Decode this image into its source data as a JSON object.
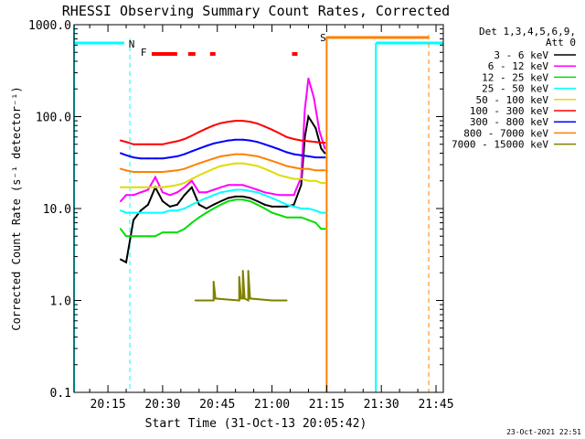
{
  "chart_data": {
    "type": "line",
    "title": "RHESSI Observing Summary Count Rates, Corrected",
    "xlabel": "Start Time (31-Oct-13 20:05:42)",
    "ylabel": "Corrected Count Rate (s⁻¹ detector⁻¹)",
    "x_tick_labels": [
      "20:15",
      "20:30",
      "20:45",
      "21:00",
      "21:15",
      "21:30",
      "21:45"
    ],
    "x_tick_minutes": [
      15,
      30,
      45,
      60,
      75,
      90,
      105
    ],
    "xlim_minutes": [
      5.7,
      107
    ],
    "y_tick_labels": [
      "0.1",
      "1.0",
      "10.0",
      "100.0",
      "1000.0"
    ],
    "y_tick_values": [
      0.1,
      1,
      10,
      100,
      1000
    ],
    "ylim": [
      0.1,
      1000
    ],
    "yscale": "log",
    "legend_header": [
      "Det 1,3,4,5,6,9,",
      "Att 0"
    ],
    "legend_position": "right",
    "series": [
      {
        "name": "3 - 6 keV",
        "color": "#000000",
        "points": [
          [
            18.5,
            2.8
          ],
          [
            20,
            2.6
          ],
          [
            22,
            7.5
          ],
          [
            24,
            9.5
          ],
          [
            26,
            11
          ],
          [
            28,
            17
          ],
          [
            30,
            12
          ],
          [
            32,
            10.5
          ],
          [
            34,
            11
          ],
          [
            36,
            14
          ],
          [
            38,
            17
          ],
          [
            40,
            11
          ],
          [
            42,
            10
          ],
          [
            44,
            11
          ],
          [
            46,
            12
          ],
          [
            48,
            13
          ],
          [
            50,
            13.5
          ],
          [
            52,
            13.5
          ],
          [
            54,
            13
          ],
          [
            56,
            12
          ],
          [
            58,
            11
          ],
          [
            60,
            10.5
          ],
          [
            62,
            10.5
          ],
          [
            64,
            10.5
          ],
          [
            66,
            11
          ],
          [
            68,
            18
          ],
          [
            69,
            60
          ],
          [
            70,
            100
          ],
          [
            72,
            75
          ],
          [
            73.5,
            45
          ],
          [
            74.5,
            40
          ]
        ]
      },
      {
        "name": "6 - 12 keV",
        "color": "#ff00ff",
        "points": [
          [
            18.5,
            12
          ],
          [
            20,
            14
          ],
          [
            22,
            14
          ],
          [
            24,
            15
          ],
          [
            26,
            16
          ],
          [
            28,
            22
          ],
          [
            30,
            15
          ],
          [
            32,
            14
          ],
          [
            34,
            15
          ],
          [
            36,
            17
          ],
          [
            38,
            20
          ],
          [
            40,
            15
          ],
          [
            42,
            15
          ],
          [
            44,
            16
          ],
          [
            46,
            17
          ],
          [
            48,
            18
          ],
          [
            50,
            18
          ],
          [
            52,
            18
          ],
          [
            54,
            17
          ],
          [
            56,
            16
          ],
          [
            58,
            15
          ],
          [
            60,
            14.5
          ],
          [
            62,
            14
          ],
          [
            64,
            14
          ],
          [
            66,
            14
          ],
          [
            68,
            22
          ],
          [
            69,
            120
          ],
          [
            70,
            260
          ],
          [
            71.5,
            160
          ],
          [
            73,
            70
          ],
          [
            74.5,
            45
          ]
        ]
      },
      {
        "name": "12 - 25 keV",
        "color": "#00dd00",
        "points": [
          [
            18.5,
            6
          ],
          [
            20,
            5
          ],
          [
            22,
            5
          ],
          [
            24,
            5
          ],
          [
            26,
            5
          ],
          [
            28,
            5
          ],
          [
            30,
            5.5
          ],
          [
            32,
            5.5
          ],
          [
            34,
            5.5
          ],
          [
            36,
            6
          ],
          [
            38,
            7
          ],
          [
            40,
            8
          ],
          [
            42,
            9
          ],
          [
            44,
            10
          ],
          [
            46,
            11
          ],
          [
            48,
            12
          ],
          [
            50,
            12.5
          ],
          [
            52,
            12.5
          ],
          [
            54,
            12
          ],
          [
            56,
            11
          ],
          [
            58,
            10
          ],
          [
            60,
            9
          ],
          [
            62,
            8.5
          ],
          [
            64,
            8
          ],
          [
            66,
            8
          ],
          [
            68,
            8
          ],
          [
            70,
            7.5
          ],
          [
            72,
            7
          ],
          [
            73.5,
            6
          ],
          [
            74.5,
            6
          ]
        ]
      },
      {
        "name": "25 - 50 keV",
        "color": "#00ffff",
        "points": [
          [
            18.5,
            9.5
          ],
          [
            20,
            9
          ],
          [
            22,
            9
          ],
          [
            24,
            9
          ],
          [
            26,
            9
          ],
          [
            28,
            9
          ],
          [
            30,
            9
          ],
          [
            32,
            9.5
          ],
          [
            34,
            9.5
          ],
          [
            36,
            10
          ],
          [
            38,
            11
          ],
          [
            40,
            12
          ],
          [
            42,
            13
          ],
          [
            44,
            14
          ],
          [
            46,
            15
          ],
          [
            48,
            15.5
          ],
          [
            50,
            16
          ],
          [
            52,
            16
          ],
          [
            54,
            15.5
          ],
          [
            56,
            15
          ],
          [
            58,
            14
          ],
          [
            60,
            13
          ],
          [
            62,
            12
          ],
          [
            64,
            11
          ],
          [
            66,
            10.5
          ],
          [
            68,
            10
          ],
          [
            70,
            10
          ],
          [
            72,
            9.5
          ],
          [
            73.5,
            9
          ],
          [
            74.5,
            9
          ]
        ]
      },
      {
        "name": "50 - 100 keV",
        "color": "#dddd00",
        "points": [
          [
            18.5,
            17
          ],
          [
            20,
            17
          ],
          [
            22,
            17
          ],
          [
            24,
            17
          ],
          [
            26,
            17
          ],
          [
            28,
            17
          ],
          [
            30,
            17
          ],
          [
            32,
            17.5
          ],
          [
            34,
            18
          ],
          [
            36,
            19
          ],
          [
            38,
            21
          ],
          [
            40,
            23
          ],
          [
            42,
            25
          ],
          [
            44,
            27
          ],
          [
            46,
            29
          ],
          [
            48,
            30
          ],
          [
            50,
            31
          ],
          [
            52,
            31
          ],
          [
            54,
            30
          ],
          [
            56,
            29
          ],
          [
            58,
            27
          ],
          [
            60,
            25
          ],
          [
            62,
            23
          ],
          [
            64,
            22
          ],
          [
            66,
            21
          ],
          [
            68,
            21
          ],
          [
            70,
            20
          ],
          [
            72,
            20
          ],
          [
            73.5,
            19
          ],
          [
            74.5,
            19
          ]
        ]
      },
      {
        "name": "100 - 300 keV",
        "color": "#ff0000",
        "points": [
          [
            18.5,
            55
          ],
          [
            20,
            53
          ],
          [
            22,
            50
          ],
          [
            24,
            50
          ],
          [
            26,
            50
          ],
          [
            28,
            50
          ],
          [
            30,
            50
          ],
          [
            32,
            52
          ],
          [
            34,
            54
          ],
          [
            36,
            57
          ],
          [
            38,
            62
          ],
          [
            40,
            68
          ],
          [
            42,
            74
          ],
          [
            44,
            80
          ],
          [
            46,
            85
          ],
          [
            48,
            88
          ],
          [
            50,
            90
          ],
          [
            52,
            90
          ],
          [
            54,
            88
          ],
          [
            56,
            84
          ],
          [
            58,
            78
          ],
          [
            60,
            72
          ],
          [
            62,
            66
          ],
          [
            64,
            60
          ],
          [
            66,
            57
          ],
          [
            68,
            55
          ],
          [
            70,
            54
          ],
          [
            72,
            53
          ],
          [
            73.5,
            52
          ],
          [
            74.5,
            52
          ]
        ]
      },
      {
        "name": "300 - 800 keV",
        "color": "#0000ff",
        "points": [
          [
            18.5,
            40
          ],
          [
            20,
            38
          ],
          [
            22,
            36
          ],
          [
            24,
            35
          ],
          [
            26,
            35
          ],
          [
            28,
            35
          ],
          [
            30,
            35
          ],
          [
            32,
            36
          ],
          [
            34,
            37
          ],
          [
            36,
            39
          ],
          [
            38,
            42
          ],
          [
            40,
            45
          ],
          [
            42,
            48
          ],
          [
            44,
            51
          ],
          [
            46,
            53
          ],
          [
            48,
            55
          ],
          [
            50,
            56
          ],
          [
            52,
            56
          ],
          [
            54,
            55
          ],
          [
            56,
            53
          ],
          [
            58,
            50
          ],
          [
            60,
            47
          ],
          [
            62,
            44
          ],
          [
            64,
            41
          ],
          [
            66,
            39
          ],
          [
            68,
            38
          ],
          [
            70,
            37
          ],
          [
            72,
            36
          ],
          [
            73.5,
            36
          ],
          [
            74.5,
            36
          ]
        ]
      },
      {
        "name": "800 - 7000 keV",
        "color": "#ff8000",
        "points": [
          [
            18.5,
            27
          ],
          [
            20,
            26
          ],
          [
            22,
            25
          ],
          [
            24,
            25
          ],
          [
            26,
            25
          ],
          [
            28,
            25
          ],
          [
            30,
            25
          ],
          [
            32,
            25.5
          ],
          [
            34,
            26
          ],
          [
            36,
            27
          ],
          [
            38,
            29
          ],
          [
            40,
            31
          ],
          [
            42,
            33
          ],
          [
            44,
            35
          ],
          [
            46,
            37
          ],
          [
            48,
            38
          ],
          [
            50,
            39
          ],
          [
            52,
            39
          ],
          [
            54,
            38
          ],
          [
            56,
            37
          ],
          [
            58,
            35
          ],
          [
            60,
            33
          ],
          [
            62,
            31
          ],
          [
            64,
            29
          ],
          [
            66,
            28
          ],
          [
            68,
            27
          ],
          [
            70,
            27
          ],
          [
            72,
            26
          ],
          [
            73.5,
            26
          ],
          [
            74.5,
            26
          ]
        ]
      },
      {
        "name": "7000 - 15000 keV",
        "color": "#808000",
        "points": [
          [
            39,
            1
          ],
          [
            44,
            1
          ],
          [
            44,
            1.6
          ],
          [
            44.5,
            1.05
          ],
          [
            51,
            1
          ],
          [
            51,
            1.8
          ],
          [
            51.5,
            1.05
          ],
          [
            52,
            1.05
          ],
          [
            52,
            2.1
          ],
          [
            52.5,
            1.05
          ],
          [
            53.5,
            1
          ],
          [
            53.5,
            2.1
          ],
          [
            54,
            1.05
          ],
          [
            60,
            1
          ],
          [
            64,
            1
          ]
        ]
      }
    ],
    "state_labels": [
      "N",
      "F",
      "S"
    ],
    "state_label_colors": [
      "#00ffff",
      "#ff0000",
      "#ff8000"
    ]
  },
  "timestamp": "23-Oct-2021 22:51"
}
